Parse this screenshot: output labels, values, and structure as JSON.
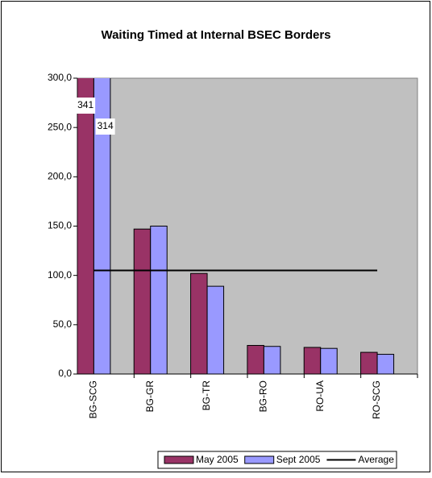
{
  "chart_data": {
    "type": "bar",
    "title": "Waiting Timed at Internal BSEC Borders",
    "categories": [
      "BG-SCG",
      "BG-GR",
      "BG-TR",
      "BG-RO",
      "RO-UA",
      "RO-SCG"
    ],
    "series": [
      {
        "name": "May 2005",
        "color": "#993366",
        "values": [
          341,
          147,
          102,
          29,
          27,
          22
        ],
        "value_labels": [
          "341",
          null,
          null,
          null,
          null,
          null
        ]
      },
      {
        "name": "Sept 2005",
        "color": "#9999ff",
        "values": [
          314,
          150,
          89,
          28,
          26,
          20
        ],
        "value_labels": [
          "314",
          null,
          null,
          null,
          null,
          null
        ]
      },
      {
        "name": "Average",
        "type": "line",
        "color": "#000000",
        "values": [
          105,
          105,
          105,
          105,
          105,
          105
        ]
      }
    ],
    "ylim": [
      0,
      300
    ],
    "yticks": [
      {
        "value": 0,
        "label": "0,0"
      },
      {
        "value": 50,
        "label": "50,0"
      },
      {
        "value": 100,
        "label": "100,0"
      },
      {
        "value": 150,
        "label": "150,0"
      },
      {
        "value": 200,
        "label": "200,0"
      },
      {
        "value": 250,
        "label": "250,0"
      },
      {
        "value": 300,
        "label": "300,0"
      }
    ],
    "plot_background": "#c0c0c0",
    "legend": "bottom"
  }
}
